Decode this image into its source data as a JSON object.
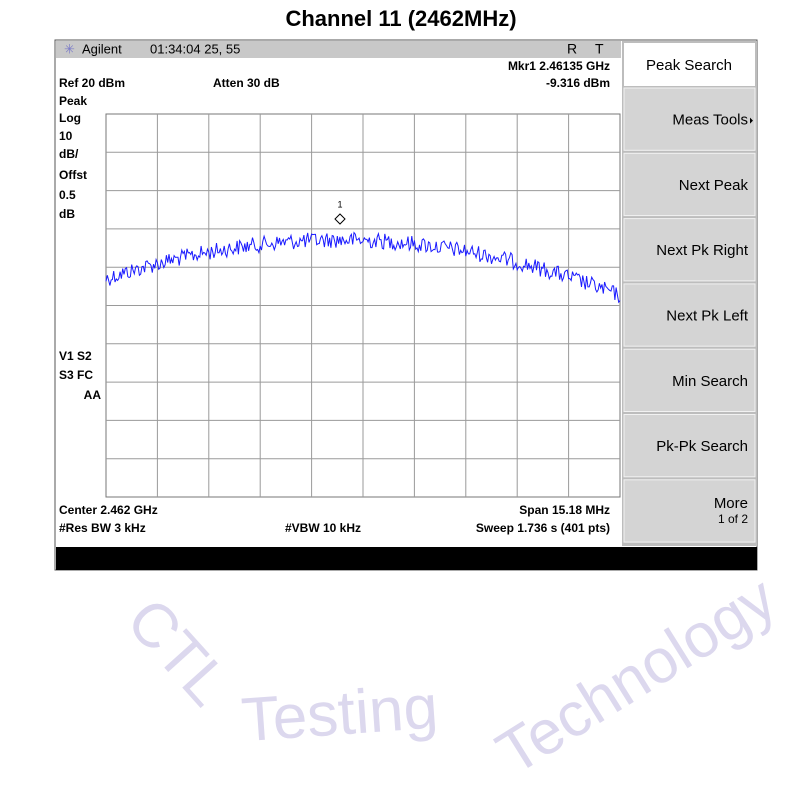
{
  "title": "Channel 11 (2462MHz)",
  "header": {
    "brand": "Agilent",
    "time": "01:34:04  25, 55",
    "r": "R",
    "t": "T"
  },
  "marker": {
    "readout_freq": "Mkr1 2.46135 GHz",
    "readout_level": "-9.316 dBm",
    "label": "1"
  },
  "settings": {
    "ref": "Ref 20 dBm",
    "atten": "Atten 30 dB",
    "scale": [
      "Peak",
      "Log",
      "10",
      "dB/",
      "Offst",
      "0.5",
      "dB"
    ],
    "flags": [
      "V1  S2",
      "S3  FC",
      "AA"
    ]
  },
  "footer": {
    "center": "Center 2.462 GHz",
    "span": "Span 15.18 MHz",
    "rbw": "#Res BW 3 kHz",
    "vbw": "#VBW 10 kHz",
    "sweep": "Sweep 1.736 s (401 pts)"
  },
  "softkeys": {
    "menu_title": "Peak Search",
    "items": [
      "Meas Tools",
      "Next Peak",
      "Next Pk Right",
      "Next Pk Left",
      "Min Search",
      "Pk-Pk Search",
      "More"
    ],
    "page": "1 of 2"
  },
  "watermark": [
    "CTL",
    "Testing",
    "Technology"
  ]
}
